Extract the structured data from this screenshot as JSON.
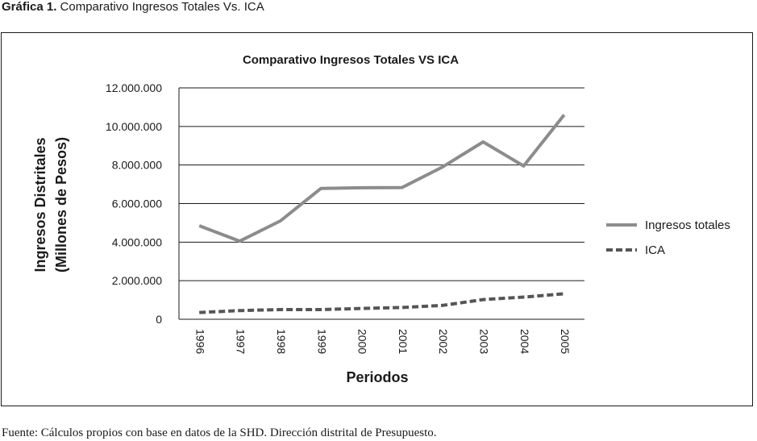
{
  "caption": {
    "label": "Gráfica 1.",
    "text": "Comparativo Ingresos Totales Vs. ICA"
  },
  "source": {
    "label": "Fuente:",
    "text": "Cálculos propios con base en datos de la SHD. Dirección distrital de Presupuesto."
  },
  "chart_data": {
    "type": "line",
    "title": "Comparativo Ingresos Totales  VS  ICA",
    "xlabel": "Periodos",
    "ylabel": [
      "Ingresos Distritales",
      "(Millones de Pesos)"
    ],
    "ylim": [
      0,
      12000000
    ],
    "yticks": [
      0,
      2000000,
      4000000,
      6000000,
      8000000,
      10000000,
      12000000
    ],
    "ytick_labels": [
      "0",
      "2.000.000",
      "4.000.000",
      "6.000.000",
      "8.000.000",
      "10.000.000",
      "12.000.000"
    ],
    "categories": [
      "1996",
      "1997",
      "1998",
      "1999",
      "2000",
      "2001",
      "2002",
      "2003",
      "2004",
      "2005"
    ],
    "grid": "horizontal",
    "legend_position": "right",
    "series": [
      {
        "name": "Ingresos totales",
        "style": "solid",
        "color": "#8c8c8c",
        "values": [
          4850000,
          4050000,
          5100000,
          6780000,
          6820000,
          6830000,
          7900000,
          9200000,
          7950000,
          10600000
        ]
      },
      {
        "name": "ICA",
        "style": "dashed",
        "color": "#555555",
        "values": [
          350000,
          450000,
          500000,
          500000,
          560000,
          610000,
          720000,
          1020000,
          1150000,
          1320000
        ]
      }
    ]
  }
}
